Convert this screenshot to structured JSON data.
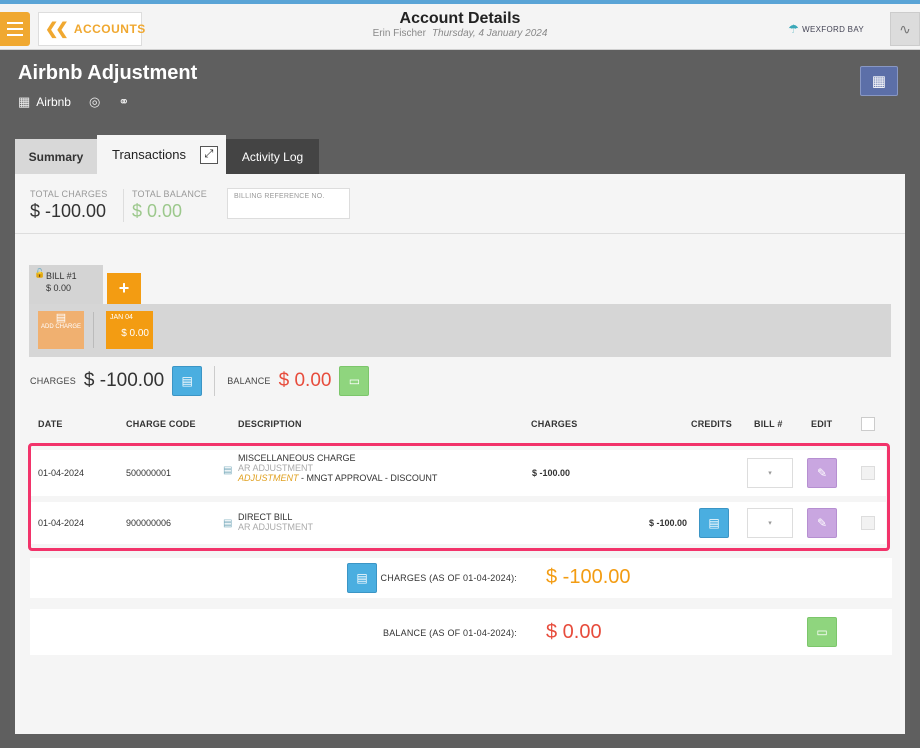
{
  "header": {
    "back_label": "ACCOUNTS",
    "title": "Account Details",
    "user": "Erin Fischer",
    "date": "Thursday, 4 January 2024",
    "brand": "WEXFORD BAY"
  },
  "account": {
    "name": "Airbnb Adjustment",
    "company": "Airbnb"
  },
  "tabs": {
    "summary": "Summary",
    "transactions": "Transactions",
    "activity_log": "Activity Log"
  },
  "summary": {
    "total_charges_label": "TOTAL CHARGES",
    "total_charges_value": "$ -100.00",
    "total_balance_label": "TOTAL BALANCE",
    "total_balance_value": "$ 0.00",
    "billing_ref_placeholder": "BILLING REFERENCE NO."
  },
  "bill": {
    "name": "BILL #1",
    "amount": "$ 0.00",
    "add_label": "+"
  },
  "day_strip": {
    "add_charge_label": "ADD CHARGE",
    "day_label": "JAN 04",
    "day_amount": "$ 0.00"
  },
  "totals": {
    "charges_label": "CHARGES",
    "charges_value": "$ -100.00",
    "balance_label": "BALANCE",
    "balance_value": "$ 0.00"
  },
  "table": {
    "columns": [
      "DATE",
      "CHARGE CODE",
      "DESCRIPTION",
      "CHARGES",
      "CREDITS",
      "BILL #",
      "EDIT"
    ],
    "rows": [
      {
        "date": "01-04-2024",
        "charge_code": "500000001",
        "desc_line1": "MISCELLANEOUS CHARGE",
        "desc_line2": "AR ADJUSTMENT",
        "desc_adj": "ADJUSTMENT",
        "desc_note": " - MNGT APPROVAL - DISCOUNT",
        "charges": "$ -100.00",
        "credits": ""
      },
      {
        "date": "01-04-2024",
        "charge_code": "900000006",
        "desc_line1": "DIRECT BILL",
        "desc_line2": "AR ADJUSTMENT",
        "charges": "",
        "credits": "$ -100.00"
      }
    ]
  },
  "footer": {
    "charges_label": "CHARGES (AS OF 01-04-2024):",
    "charges_value": "$ -100.00",
    "balance_label": "BALANCE (AS OF 01-04-2024):",
    "balance_value": "$ 0.00"
  },
  "colors": {
    "accent_orange": "#f39c12",
    "accent_blue": "#4aaee0",
    "highlight": "#f2336a",
    "negative_red": "#e74c3c"
  }
}
